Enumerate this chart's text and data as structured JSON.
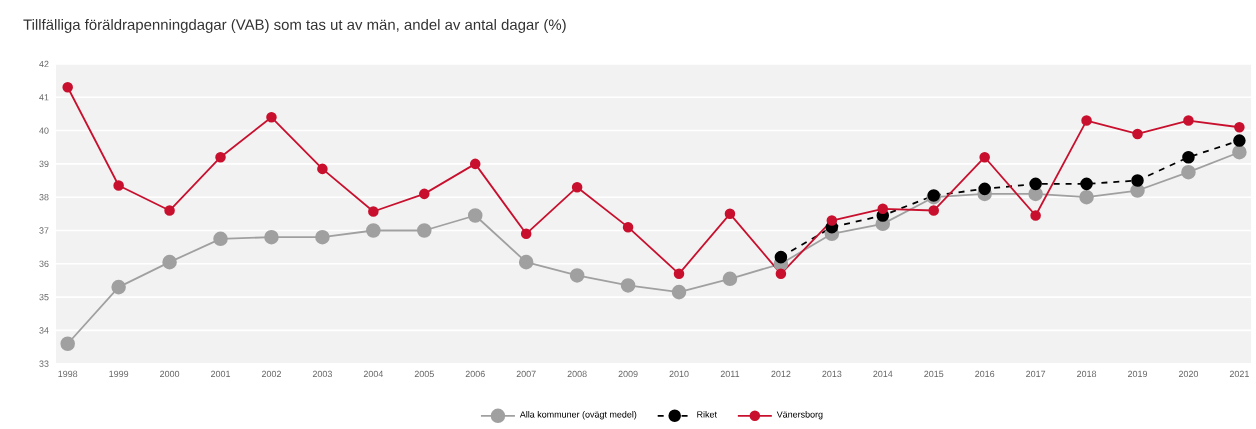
{
  "chart_data": {
    "type": "line",
    "title": "Tillfälliga föräldrapenningdagar (VAB) som tas ut av män, andel av antal dagar (%)",
    "categories": [
      "1998",
      "1999",
      "2000",
      "2001",
      "2002",
      "2003",
      "2004",
      "2005",
      "2006",
      "2007",
      "2008",
      "2009",
      "2010",
      "2011",
      "2012",
      "2013",
      "2014",
      "2015",
      "2016",
      "2017",
      "2018",
      "2019",
      "2020",
      "2021"
    ],
    "series": [
      {
        "name": "Alla kommuner (ovägt medel)",
        "color": "#a0a0a0",
        "line_style": "solid",
        "values": [
          33.6,
          35.3,
          36.05,
          36.75,
          36.8,
          36.8,
          37.0,
          37.0,
          37.45,
          36.05,
          35.65,
          35.35,
          35.15,
          35.55,
          36.0,
          36.9,
          37.2,
          38.0,
          38.1,
          38.1,
          38.0,
          38.2,
          38.75,
          39.35
        ]
      },
      {
        "name": "Riket",
        "color": "#000000",
        "line_style": "dashed",
        "values": [
          null,
          null,
          null,
          null,
          null,
          null,
          null,
          null,
          null,
          null,
          null,
          null,
          null,
          null,
          36.2,
          37.1,
          37.45,
          38.05,
          38.25,
          38.4,
          38.4,
          38.5,
          39.2,
          39.7
        ]
      },
      {
        "name": "Vänersborg",
        "color": "#c8102e",
        "line_style": "solid",
        "values": [
          41.3,
          38.35,
          37.6,
          39.2,
          40.4,
          38.85,
          37.57,
          38.1,
          39.0,
          36.9,
          38.3,
          37.1,
          35.7,
          37.5,
          35.7,
          37.3,
          37.65,
          37.6,
          39.2,
          37.45,
          40.3,
          39.9,
          40.3,
          40.1
        ]
      }
    ],
    "ylim": [
      33,
      42
    ],
    "yticks": [
      33,
      34,
      35,
      36,
      37,
      38,
      39,
      40,
      41,
      42
    ],
    "grid": "y",
    "legend": "bottom",
    "marker": "circle"
  }
}
